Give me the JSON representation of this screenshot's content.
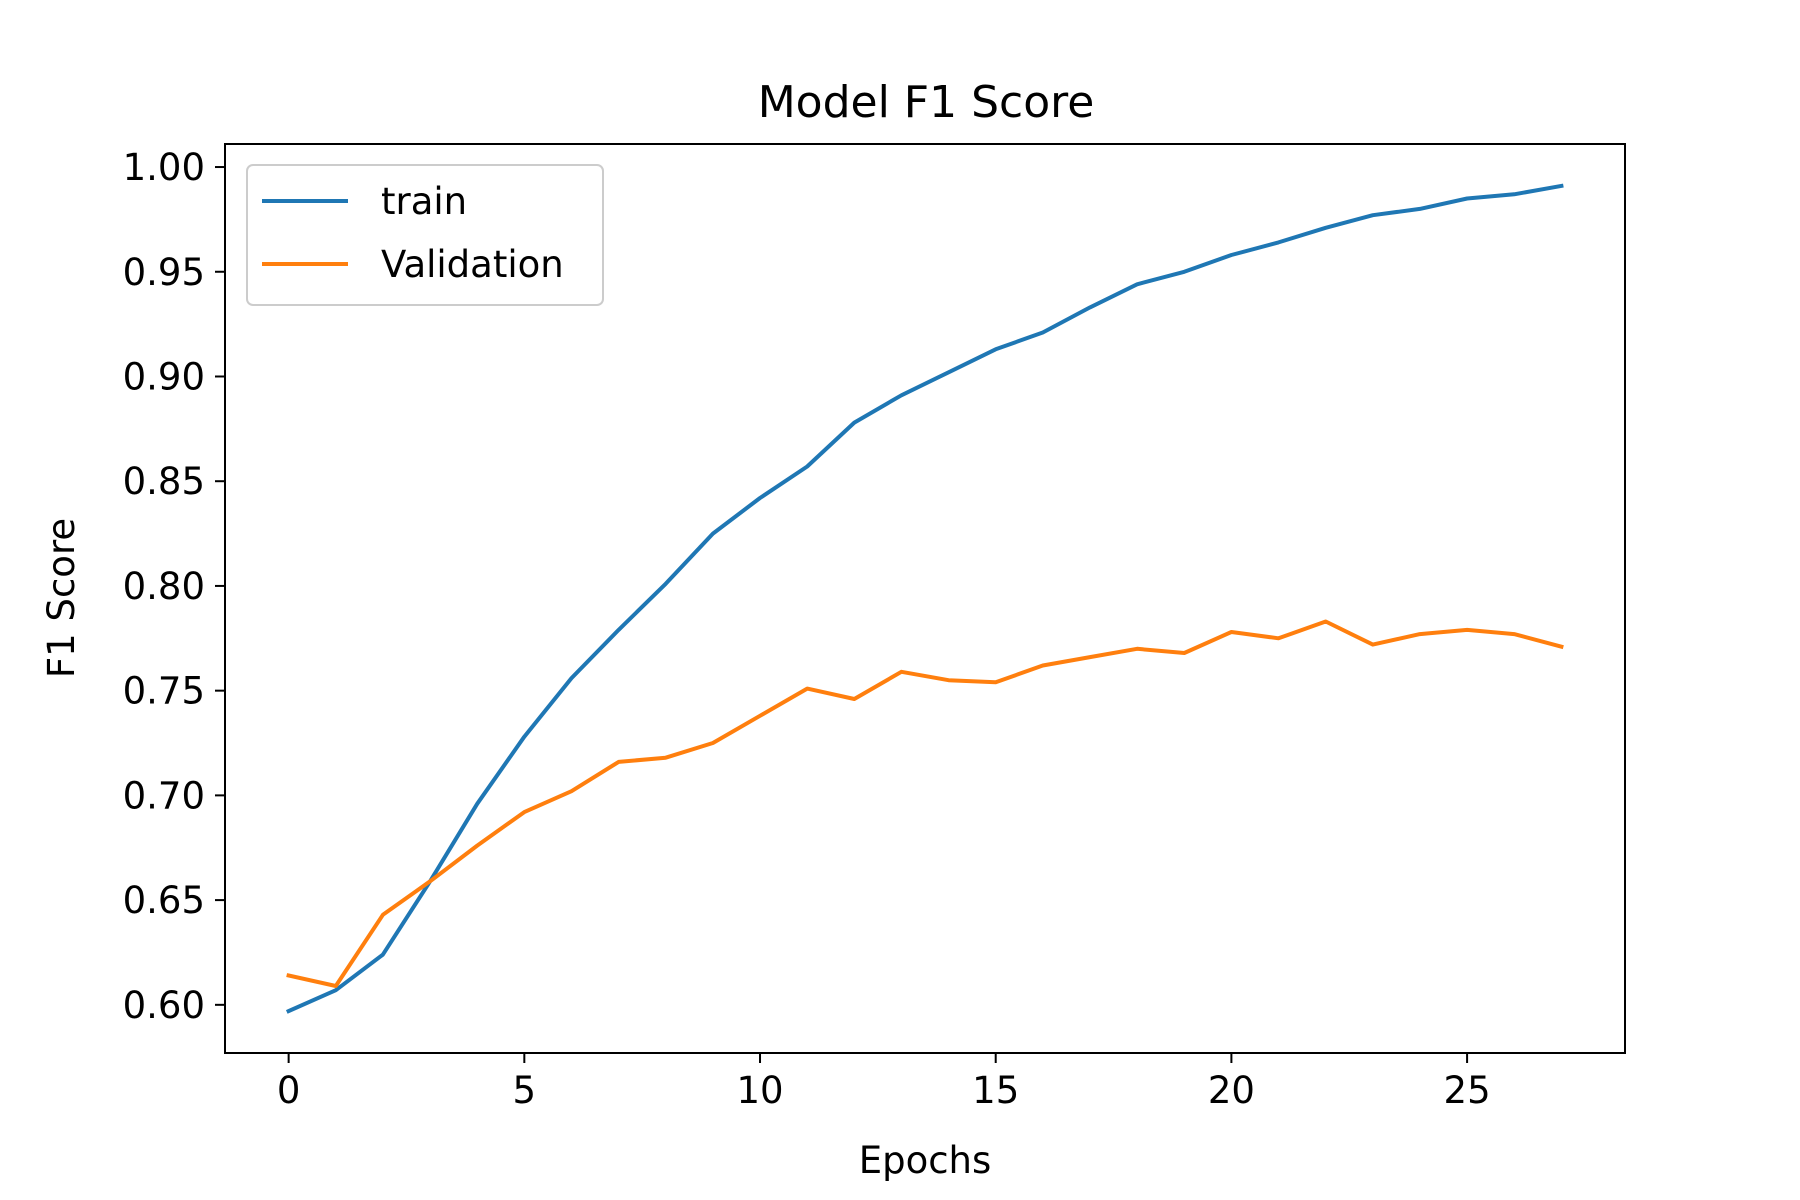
{
  "chart_data": {
    "type": "line",
    "title": "Model F1 Score",
    "xlabel": "Epochs",
    "ylabel": "F1 Score",
    "xlim": [
      -1.35,
      28.35
    ],
    "ylim": [
      0.577,
      1.011
    ],
    "xticks": [
      0,
      5,
      10,
      15,
      20,
      25
    ],
    "yticks": [
      0.6,
      0.65,
      0.7,
      0.75,
      0.8,
      0.85,
      0.9,
      0.95,
      1.0
    ],
    "xtick_labels": [
      "0",
      "5",
      "10",
      "15",
      "20",
      "25"
    ],
    "ytick_labels": [
      "0.60",
      "0.65",
      "0.70",
      "0.75",
      "0.80",
      "0.85",
      "0.90",
      "0.95",
      "1.00"
    ],
    "grid": false,
    "legend_position": "top-left",
    "x": [
      0,
      1,
      2,
      3,
      4,
      5,
      6,
      7,
      8,
      9,
      10,
      11,
      12,
      13,
      14,
      15,
      16,
      17,
      18,
      19,
      20,
      21,
      22,
      23,
      24,
      25,
      26,
      27
    ],
    "series": [
      {
        "name": "train",
        "color": "#1f77b4",
        "values": [
          0.597,
          0.607,
          0.624,
          0.659,
          0.696,
          0.728,
          0.756,
          0.779,
          0.801,
          0.825,
          0.842,
          0.857,
          0.878,
          0.891,
          0.902,
          0.913,
          0.921,
          0.933,
          0.944,
          0.95,
          0.958,
          0.964,
          0.971,
          0.977,
          0.98,
          0.985,
          0.987,
          0.991
        ]
      },
      {
        "name": "Validation",
        "color": "#ff7f0e",
        "values": [
          0.614,
          0.609,
          0.643,
          0.659,
          0.676,
          0.692,
          0.702,
          0.716,
          0.718,
          0.725,
          0.738,
          0.751,
          0.746,
          0.759,
          0.755,
          0.754,
          0.762,
          0.766,
          0.77,
          0.768,
          0.778,
          0.775,
          0.783,
          0.772,
          0.777,
          0.779,
          0.777,
          0.771
        ]
      }
    ]
  }
}
